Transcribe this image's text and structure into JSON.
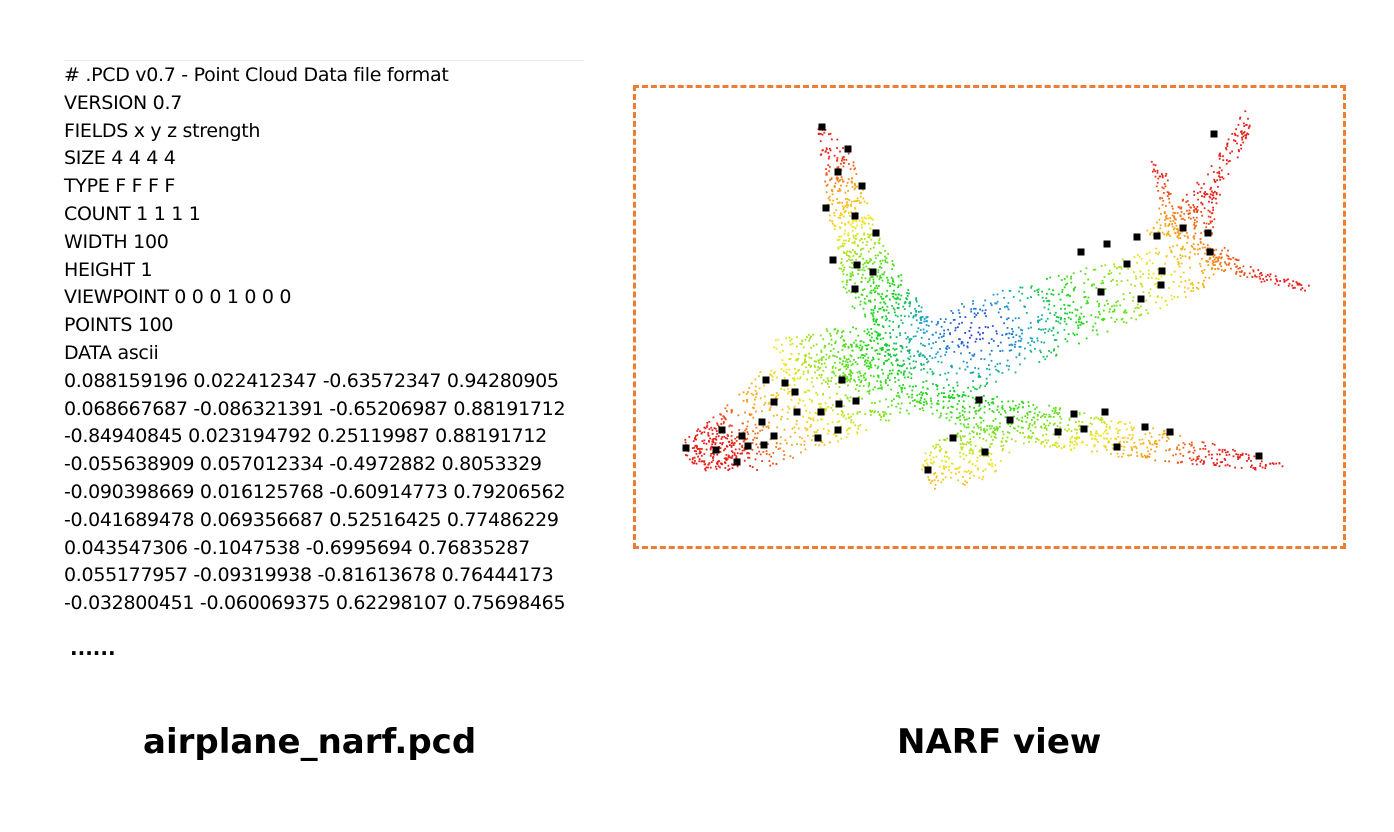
{
  "pcd_file": {
    "header": [
      "# .PCD v0.7 - Point Cloud Data file format",
      "VERSION 0.7",
      "FIELDS x y z strength",
      "SIZE 4 4 4 4",
      "TYPE F F F F",
      "COUNT 1 1 1 1",
      "WIDTH 100",
      "HEIGHT 1",
      "VIEWPOINT 0 0 0 1 0 0 0",
      "POINTS 100",
      "DATA ascii"
    ],
    "rows": [
      "0.088159196 0.022412347 -0.63572347 0.94280905",
      "0.068667687 -0.086321391 -0.65206987 0.88191712",
      "-0.84940845 0.023194792 0.25119987 0.88191712",
      "-0.055638909 0.057012334 -0.4972882 0.8053329",
      "-0.090398669 0.016125768 -0.60914773 0.79206562",
      "-0.041689478 0.069356687 0.52516425 0.77486229",
      "0.043547306 -0.1047538 -0.6995694 0.76835287",
      "0.055177957 -0.09319938 -0.81613678 0.76444173",
      "-0.032800451 -0.060069375 0.62298107 0.75698465"
    ],
    "ellipsis": "......"
  },
  "captions": {
    "left": "airplane_narf.pcd",
    "right": "NARF view"
  },
  "colors": {
    "frame_border": "#ef7d31",
    "point_gradient": [
      "#e8201c",
      "#f5a21a",
      "#f2e51c",
      "#6fe01c",
      "#14d418",
      "#1c9ad2",
      "#2a2ad6"
    ],
    "keypoint": "#000000"
  }
}
